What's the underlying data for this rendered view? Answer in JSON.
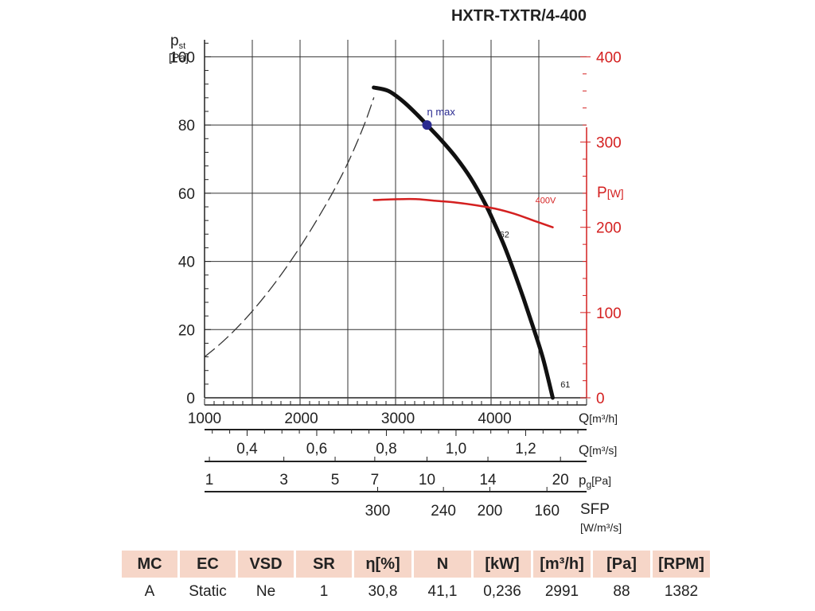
{
  "chart_data": {
    "type": "line",
    "title": "HXTR-TXTR/4-400",
    "left_axis": {
      "label_main": "p",
      "label_sub": "st",
      "unit": "[Pa]",
      "ylim": [
        0,
        105
      ],
      "ticks": [
        0,
        20,
        40,
        60,
        80,
        100
      ]
    },
    "right_axis": {
      "label_main": "P",
      "unit": "[W]",
      "color": "#d42020",
      "ylim": [
        0,
        420
      ],
      "ticks": [
        0,
        100,
        200,
        300,
        400
      ]
    },
    "x_axis": {
      "unit_label": "Q",
      "unit": "[m³/h]",
      "xlim": [
        1000,
        4950
      ],
      "ticks": [
        1000,
        2000,
        3000,
        4000
      ],
      "tick_labels": [
        "1000",
        "2000",
        "3000",
        "4000"
      ]
    },
    "grid": true,
    "series": [
      {
        "name": "62",
        "axis": "left",
        "style": "solid-thick",
        "color": "#111111",
        "x": [
          2750,
          2900,
          3050,
          3200,
          3300,
          3450,
          3600,
          3750,
          3900,
          4000,
          4100,
          4200,
          4300,
          4400,
          4500,
          4600
        ],
        "y": [
          91,
          90,
          87,
          83,
          80,
          75.5,
          70.5,
          64.5,
          57,
          51,
          44.5,
          37,
          29,
          20.5,
          11.5,
          0
        ]
      },
      {
        "name": "61",
        "axis": "left",
        "style": "dashed",
        "color": "#333333",
        "x": [
          1000,
          1150,
          1300,
          1450,
          1600,
          1750,
          1900,
          2050,
          2200,
          2350,
          2500,
          2650,
          2750
        ],
        "y": [
          12,
          15.5,
          19.5,
          24,
          29,
          34.5,
          40.5,
          47,
          54,
          61.5,
          70,
          80,
          88
        ]
      },
      {
        "name": "400V",
        "axis": "right",
        "style": "solid",
        "color": "#d42020",
        "x": [
          2750,
          3000,
          3200,
          3400,
          3600,
          3800,
          4000,
          4200,
          4400,
          4600
        ],
        "y": [
          232,
          233,
          233,
          231,
          229,
          226,
          222,
          216,
          208,
          200
        ]
      }
    ],
    "point_annotations": [
      {
        "label": "η max",
        "x": 3300,
        "y": 80,
        "color": "#2a2a90"
      }
    ],
    "curve_labels": [
      {
        "text": "62",
        "x": 4050,
        "y": 47,
        "axis": "left"
      },
      {
        "text": "61",
        "x": 4680,
        "y": 3,
        "axis": "left"
      },
      {
        "text": "400V",
        "x": 4420,
        "y": 228,
        "axis": "right"
      }
    ],
    "sub_scales": [
      {
        "unit_label": "Q",
        "unit": "[m³/s]",
        "ticks": [
          {
            "label": "0,4",
            "x": 1440
          },
          {
            "label": "0,6",
            "x": 2160
          },
          {
            "label": "0,8",
            "x": 2880
          },
          {
            "label": "1,0",
            "x": 3600
          },
          {
            "label": "1,2",
            "x": 4320
          }
        ],
        "minor_step": 0.05,
        "minor_factor": 3600
      },
      {
        "unit_label": "p",
        "unit_sub": "g",
        "unit": "[Pa]",
        "ticks": [
          {
            "label": "1",
            "x": 1050
          },
          {
            "label": "3",
            "x": 1820
          },
          {
            "label": "5",
            "x": 2350
          },
          {
            "label": "7",
            "x": 2760
          },
          {
            "label": "10",
            "x": 3300
          },
          {
            "label": "14",
            "x": 3930
          },
          {
            "label": "20",
            "x": 4680
          }
        ]
      },
      {
        "unit_label": "SFP",
        "unit": "[W/m³/s]",
        "ticks": [
          {
            "label": "300",
            "x": 2790
          },
          {
            "label": "240",
            "x": 3470
          },
          {
            "label": "200",
            "x": 3950
          },
          {
            "label": "160",
            "x": 4540
          }
        ]
      }
    ]
  },
  "table": {
    "headers": [
      "MC",
      "EC",
      "VSD",
      "SR",
      "η[%]",
      "N",
      "[kW]",
      "[m³/h]",
      "[Pa]",
      "[RPM]"
    ],
    "values": [
      "A",
      "Static",
      "Ne",
      "1",
      "30,8",
      "41,1",
      "0,236",
      "2991",
      "88",
      "1382"
    ],
    "col_widths": [
      70,
      70,
      70,
      70,
      72,
      72,
      72,
      72,
      72,
      72
    ]
  }
}
